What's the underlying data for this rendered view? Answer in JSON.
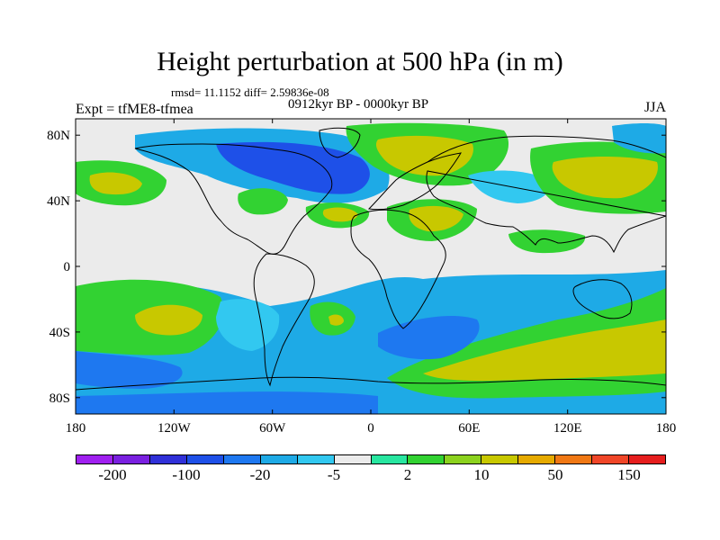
{
  "title": "Height perturbation at 500 hPa (in m)",
  "stats": "rmsd= 11.1152 diff= 2.59836e-08",
  "period": "0912kyr BP - 0000kyr BP",
  "experiment": "Expt = tfME8-tfmea",
  "season": "JJA",
  "map": {
    "lat_labels": [
      "80N",
      "40N",
      "0",
      "40S",
      "80S"
    ],
    "lon_labels": [
      "180",
      "120W",
      "60W",
      "0",
      "60E",
      "120E",
      "180"
    ]
  },
  "colorbar": {
    "colors": [
      "#a020f0",
      "#7a20e0",
      "#3030d8",
      "#1e50e8",
      "#1e78f0",
      "#1eaae6",
      "#32c8f0",
      "#ebebeb",
      "#28e6a0",
      "#32d232",
      "#8cd21e",
      "#c8c800",
      "#e6aa00",
      "#f07814",
      "#f04628",
      "#e61e1e"
    ],
    "labels": [
      "-200",
      "-100",
      "-20",
      "-5",
      "2",
      "10",
      "50",
      "150"
    ]
  },
  "fill_palette": {
    "background": "#ebebeb",
    "neg_light": "#32c8f0",
    "neg_mid": "#1eaae6",
    "neg_strong": "#1e78f0",
    "neg_deep": "#1e50e8",
    "pos_light": "#28e6a0",
    "pos_mid": "#32d232",
    "pos_strong": "#8cd21e",
    "pos_peak": "#c8c800"
  }
}
